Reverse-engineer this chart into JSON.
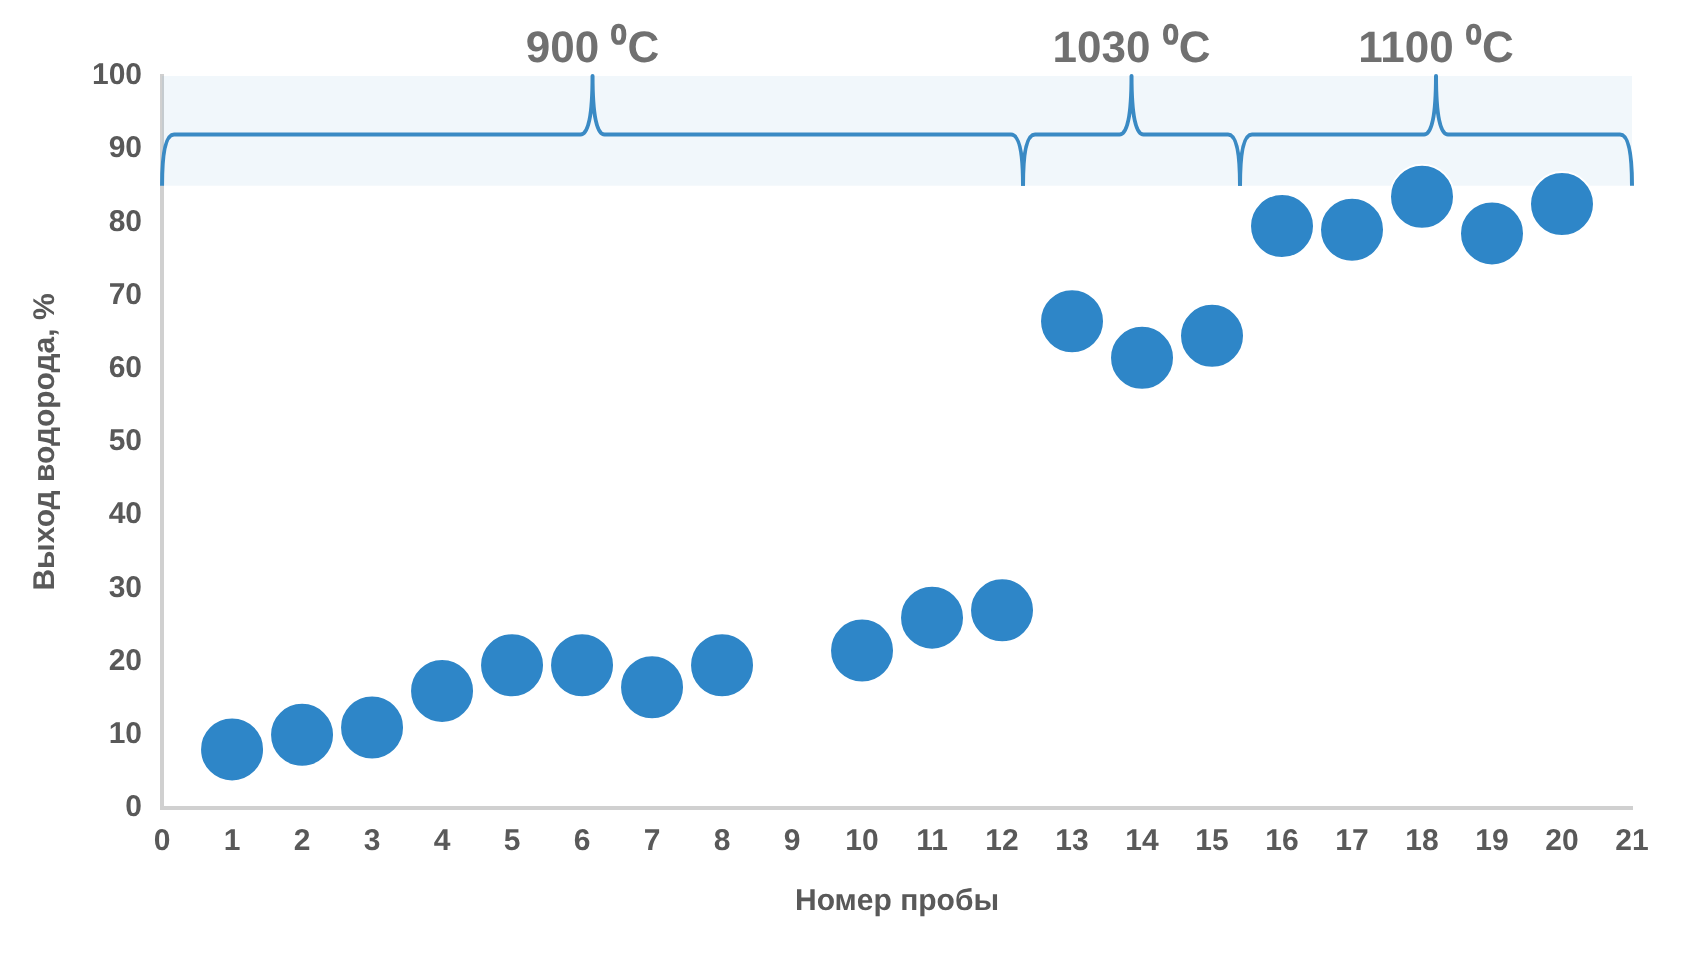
{
  "chart_data": {
    "type": "scatter",
    "xlabel": "Номер пробы",
    "ylabel": "Выход водорода, %",
    "x": [
      1,
      2,
      3,
      4,
      5,
      6,
      7,
      8,
      10,
      11,
      12,
      13,
      14,
      15,
      16,
      17,
      18,
      19,
      20
    ],
    "values": [
      8,
      10,
      11,
      16,
      19.5,
      19.5,
      16.5,
      19.5,
      21.5,
      26,
      27,
      66.5,
      61.5,
      64.5,
      79.5,
      79,
      83.5,
      78.5,
      82.5
    ],
    "color": "#2e86c8",
    "marker": "circle",
    "xlim": [
      0,
      21
    ],
    "xticks": [
      0,
      1,
      2,
      3,
      4,
      5,
      6,
      7,
      8,
      9,
      10,
      11,
      12,
      13,
      14,
      15,
      16,
      17,
      18,
      19,
      20,
      21
    ],
    "ylim": [
      0,
      100
    ],
    "yticks": [
      0,
      10,
      20,
      30,
      40,
      50,
      60,
      70,
      80,
      90,
      100
    ],
    "grid": false,
    "legend": false,
    "bands": [
      {
        "axis": "x",
        "from": 0,
        "to": 12.3,
        "label": "900 ⁰C",
        "color": "#3a8ac4"
      },
      {
        "axis": "x",
        "from": 12.3,
        "to": 15.4,
        "label": "1030 ⁰C",
        "color": "#3a8ac4"
      },
      {
        "axis": "x",
        "from": 15.4,
        "to": 21,
        "label": "1100 ⁰C",
        "color": "#3a8ac4"
      }
    ]
  }
}
